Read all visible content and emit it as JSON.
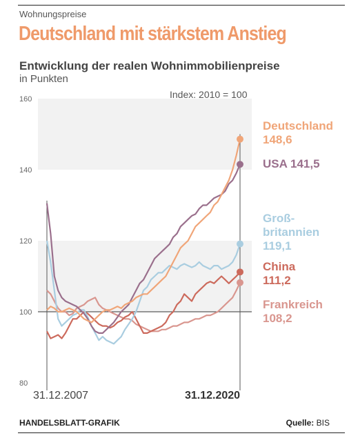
{
  "kicker": "Wohnungspreise",
  "headline": "Deutschland mit stärkstem Anstieg",
  "subtitle": "Entwicklung der realen Wohnimmobilienpreise",
  "unit": "in Punkten",
  "footer": {
    "credit": "HANDELSBLATT-GRAFIK",
    "source_label": "Quelle:",
    "source_value": "BIS"
  },
  "colors": {
    "Deutschland": "#f0a578",
    "USA": "#9a6f8c",
    "Großbritannien": "#a9cde0",
    "China": "#cc6a5c",
    "Frankreich": "#d9968f"
  },
  "chart_data": {
    "type": "line",
    "title": "",
    "annotation": "Index: 2010 = 100",
    "ylim": [
      80,
      160
    ],
    "yticks": [
      "80",
      "100",
      "120",
      "140",
      "160"
    ],
    "grid": true,
    "reference_line": 100,
    "x_start_label": "31.12.2007",
    "x_end_label": "31.12.2020",
    "x_quarters": 53,
    "series": [
      {
        "name": "Deutschland",
        "end_label": [
          "Deutschland",
          "148,6"
        ],
        "values": [
          100.5,
          101.5,
          101,
          100,
          100,
          100.5,
          101,
          100.5,
          100,
          99,
          98,
          97.5,
          97,
          98,
          99,
          100,
          100.5,
          100.5,
          101,
          101.5,
          101,
          102,
          102.5,
          103,
          104,
          104.5,
          105,
          105,
          106,
          107,
          108,
          109,
          110,
          112,
          114,
          116,
          118,
          119,
          120,
          122,
          124,
          125,
          126,
          127,
          128,
          130,
          131,
          133,
          135,
          137,
          140,
          144,
          148.6
        ]
      },
      {
        "name": "USA",
        "end_label": [
          "USA 141,5"
        ],
        "values": [
          130.5,
          122,
          110,
          106,
          104,
          103,
          102.5,
          102,
          101.5,
          100.5,
          99.5,
          98,
          96,
          94.5,
          94,
          94,
          95,
          96,
          97,
          98.5,
          100,
          101,
          102,
          104,
          106,
          108,
          109,
          111,
          113,
          115,
          116,
          117,
          118,
          119,
          121,
          122,
          124,
          125,
          126,
          127,
          127.5,
          129,
          130,
          130,
          131,
          132,
          132.5,
          133,
          134,
          136,
          137,
          139,
          141.5
        ]
      },
      {
        "name": "Großbritannien",
        "end_label": [
          "Groß-",
          "britannien",
          "119,1"
        ],
        "values": [
          120,
          114,
          106,
          98,
          96,
          97,
          98,
          99,
          99.5,
          100.5,
          100.5,
          98.5,
          96,
          94,
          92,
          93,
          92,
          91.5,
          91,
          92,
          93,
          95,
          96.5,
          98,
          100,
          103,
          106,
          107,
          109,
          110,
          111,
          111,
          112,
          113,
          112.5,
          112,
          113,
          113.5,
          113,
          112.5,
          113,
          114,
          113,
          112.5,
          112,
          113,
          113,
          112,
          112.5,
          113,
          114,
          116,
          119.1
        ]
      },
      {
        "name": "China",
        "end_label": [
          "China",
          "111,2"
        ],
        "values": [
          94.5,
          92.5,
          93,
          93.5,
          92.5,
          94,
          96,
          98,
          98,
          99,
          100,
          99.5,
          98.5,
          97.5,
          96.5,
          96,
          96,
          95.5,
          96,
          97,
          97.5,
          98.5,
          99,
          100,
          98,
          96,
          94,
          94,
          94.5,
          95,
          95.5,
          96,
          97,
          99,
          100,
          102,
          103,
          105,
          104,
          103,
          105,
          106,
          107,
          108,
          108.5,
          108,
          109,
          110,
          109,
          108,
          109,
          110,
          111.2
        ]
      },
      {
        "name": "Frankreich",
        "end_label": [
          "Frankreich",
          "108,2"
        ],
        "values": [
          106,
          105,
          103,
          101,
          100,
          100,
          99,
          99.5,
          101,
          101.5,
          102,
          103,
          103.5,
          104,
          102,
          101,
          100.5,
          100,
          99.5,
          99,
          98.5,
          98,
          98,
          97.5,
          96.5,
          96,
          95.5,
          95,
          94.5,
          94.5,
          94.5,
          95,
          95,
          95.5,
          96,
          96,
          96.5,
          97,
          97,
          97.5,
          98,
          98,
          98.5,
          99,
          99,
          99.5,
          100,
          101,
          102,
          103,
          104,
          106,
          108.2
        ]
      }
    ]
  }
}
